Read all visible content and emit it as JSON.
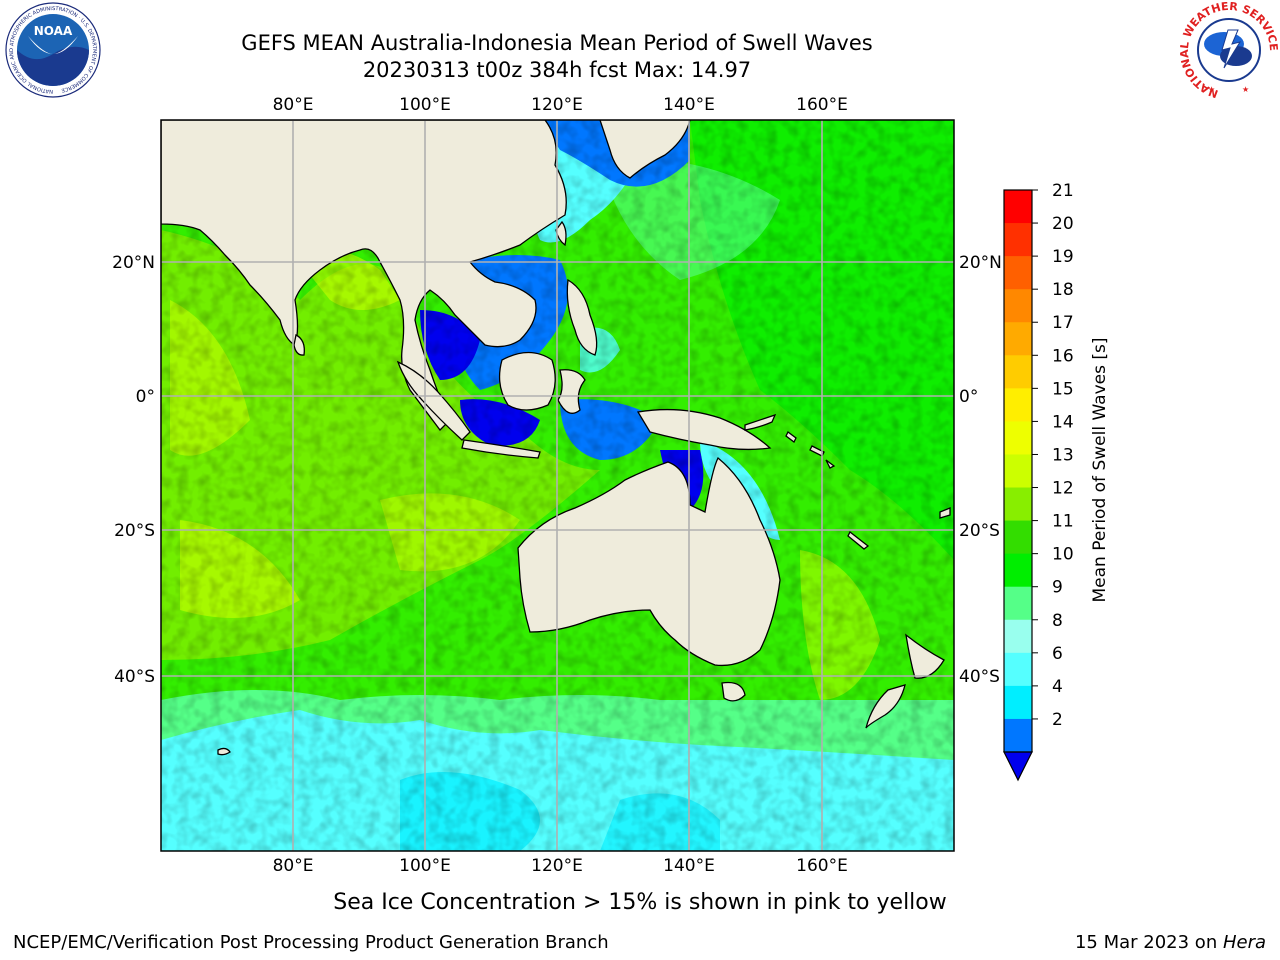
{
  "title": {
    "line1": "GEFS MEAN Australia-Indonesia Mean Period of Swell Waves",
    "line2": "20230313 t00z 384h fcst   Max: 14.97"
  },
  "map": {
    "lon_labels": [
      "80°E",
      "100°E",
      "120°E",
      "140°E",
      "160°E"
    ],
    "lat_labels": [
      "20°N",
      "0°",
      "20°S",
      "40°S"
    ],
    "land_color": "#efecdc",
    "grid_color": "#b0b0b0"
  },
  "colorbar": {
    "label": "Mean Period of Swell Waves [s]",
    "ticks": [
      "21",
      "20",
      "19",
      "18",
      "17",
      "16",
      "15",
      "14",
      "13",
      "12",
      "11",
      "10",
      "9",
      "8",
      "6",
      "4",
      "2"
    ],
    "colors": [
      "#ff0000",
      "#ff3000",
      "#ff6000",
      "#ff8800",
      "#ffaa00",
      "#ffcc00",
      "#ffee00",
      "#eeff00",
      "#ccff00",
      "#88ee00",
      "#33dd00",
      "#00ee00",
      "#55ff88",
      "#99ffee",
      "#55ffff",
      "#00eeff",
      "#0077ff"
    ],
    "under_color": "#0000ee"
  },
  "note": "Sea Ice Concentration > 15% is shown in pink to yellow",
  "footer": {
    "left": "NCEP/EMC/Verification Post Processing Product Generation Branch",
    "right_prefix": "15 Mar 2023 on ",
    "right_host": "Hera"
  },
  "logos": {
    "left_text": "NOAA",
    "left_ring": "NATIONAL OCEANIC AND ATMOSPHERIC ADMINISTRATION · U.S. DEPARTMENT OF COMMERCE",
    "right_ring": "NATIONAL WEATHER SERVICE"
  }
}
